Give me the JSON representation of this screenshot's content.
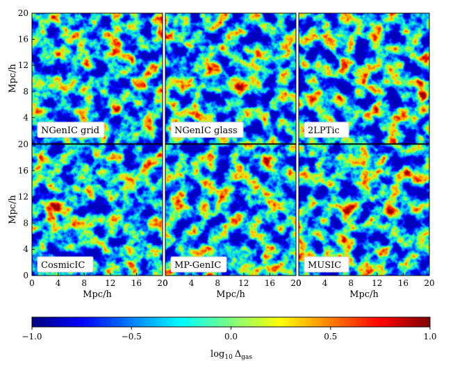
{
  "figure": {
    "panels": [
      {
        "label": "NGenIC grid"
      },
      {
        "label": "NGenIC glass"
      },
      {
        "label": "2LPTic"
      },
      {
        "label": "CosmicIC"
      },
      {
        "label": "MP-GenIC"
      },
      {
        "label": "MUSIC"
      }
    ],
    "axis": {
      "x_label": "Mpc/h",
      "y_label": "Mpc/h",
      "x_ticks": [
        "0",
        "4",
        "8",
        "12",
        "16",
        "20"
      ],
      "y_ticks": [
        "0",
        "4",
        "8",
        "12",
        "16",
        "20"
      ],
      "range": [
        0,
        20
      ]
    },
    "colorbar": {
      "label": "log10 Δgas",
      "label_base": "log",
      "label_sub10": "10",
      "label_main": "Δ",
      "label_sub": "gas",
      "ticks": [
        "−1.0",
        "−0.5",
        "0.0",
        "0.5",
        "1.0"
      ],
      "range": [
        -1.0,
        1.0
      ],
      "colormap": "jet",
      "colors": [
        "#00007f",
        "#0000ff",
        "#007fff",
        "#00ffff",
        "#7fff7f",
        "#ffff00",
        "#ff7f00",
        "#ff0000",
        "#7f0000"
      ]
    }
  }
}
